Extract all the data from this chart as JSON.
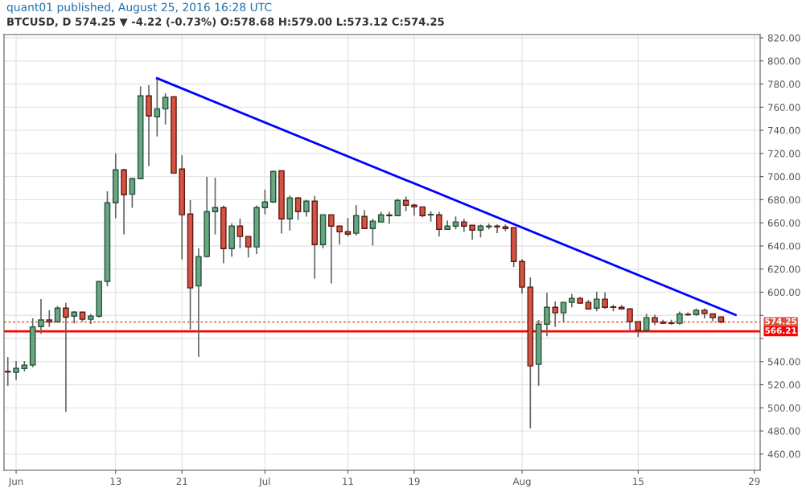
{
  "chart_data": {
    "type": "candlestick",
    "title": "quant01 published, August 25, 2016 16:28 UTC",
    "subtitle": "BTCUSD, D 574.25 ▼ -4.22 (-0.73%) O:578.68 H:579.00 L:573.12 C:574.25",
    "x": [
      "2016-05-31",
      "2016-06-01",
      "2016-06-02",
      "2016-06-03",
      "2016-06-04",
      "2016-06-05",
      "2016-06-06",
      "2016-06-07",
      "2016-06-08",
      "2016-06-09",
      "2016-06-10",
      "2016-06-11",
      "2016-06-12",
      "2016-06-13",
      "2016-06-14",
      "2016-06-15",
      "2016-06-16",
      "2016-06-17",
      "2016-06-18",
      "2016-06-19",
      "2016-06-20",
      "2016-06-21",
      "2016-06-22",
      "2016-06-23",
      "2016-06-24",
      "2016-06-25",
      "2016-06-26",
      "2016-06-27",
      "2016-06-28",
      "2016-06-29",
      "2016-06-30",
      "2016-07-01",
      "2016-07-02",
      "2016-07-03",
      "2016-07-04",
      "2016-07-05",
      "2016-07-06",
      "2016-07-07",
      "2016-07-08",
      "2016-07-09",
      "2016-07-10",
      "2016-07-11",
      "2016-07-12",
      "2016-07-13",
      "2016-07-14",
      "2016-07-15",
      "2016-07-16",
      "2016-07-17",
      "2016-07-18",
      "2016-07-19",
      "2016-07-20",
      "2016-07-21",
      "2016-07-22",
      "2016-07-23",
      "2016-07-24",
      "2016-07-25",
      "2016-07-26",
      "2016-07-27",
      "2016-07-28",
      "2016-07-29",
      "2016-07-30",
      "2016-07-31",
      "2016-08-01",
      "2016-08-02",
      "2016-08-03",
      "2016-08-04",
      "2016-08-05",
      "2016-08-06",
      "2016-08-07",
      "2016-08-08",
      "2016-08-09",
      "2016-08-10",
      "2016-08-11",
      "2016-08-12",
      "2016-08-13",
      "2016-08-14",
      "2016-08-15",
      "2016-08-16",
      "2016-08-17",
      "2016-08-18",
      "2016-08-19",
      "2016-08-20",
      "2016-08-21",
      "2016-08-22",
      "2016-08-23",
      "2016-08-24",
      "2016-08-25"
    ],
    "ohlc": [
      [
        531.5,
        544,
        519,
        531
      ],
      [
        530.7,
        540.6,
        524,
        534.2
      ],
      [
        534,
        540.5,
        531.5,
        537
      ],
      [
        537,
        577.5,
        535,
        570
      ],
      [
        570.3,
        594,
        564,
        576
      ],
      [
        576,
        584.5,
        570,
        574.3
      ],
      [
        574.3,
        588,
        574,
        586.3
      ],
      [
        586.3,
        590.7,
        496.5,
        578.4
      ],
      [
        579.3,
        583.7,
        573,
        582.8
      ],
      [
        582.8,
        583,
        574.7,
        576.6
      ],
      [
        576.6,
        581,
        572.5,
        579.3
      ],
      [
        579.3,
        609.5,
        578,
        609.2
      ],
      [
        609.4,
        687.3,
        605,
        677.3
      ],
      [
        677.3,
        720,
        664,
        705.8
      ],
      [
        705.8,
        706.7,
        650,
        684.3
      ],
      [
        684.7,
        699,
        673,
        698.2
      ],
      [
        698.2,
        778,
        698,
        769.8
      ],
      [
        769.8,
        779,
        709,
        752.4
      ],
      [
        751.7,
        785,
        734.7,
        758.6
      ],
      [
        758.6,
        772,
        745,
        768.4
      ],
      [
        769,
        769.5,
        703,
        703
      ],
      [
        706.5,
        718.5,
        628.4,
        667
      ],
      [
        667.6,
        679.6,
        567.7,
        603.7
      ],
      [
        605.5,
        638,
        544,
        630.8
      ],
      [
        630.8,
        699.8,
        630,
        669.7
      ],
      [
        669.7,
        699,
        650,
        673.2
      ],
      [
        673.2,
        675,
        625,
        637.7
      ],
      [
        637.7,
        659.4,
        630.8,
        657.2
      ],
      [
        657.2,
        663.6,
        638,
        648.2
      ],
      [
        648.2,
        648.5,
        630,
        639.2
      ],
      [
        639.2,
        675,
        633,
        673.2
      ],
      [
        673.2,
        688.7,
        667.3,
        678
      ],
      [
        678,
        705,
        677,
        704.4
      ],
      [
        705,
        705.2,
        650.7,
        663.4
      ],
      [
        663.4,
        683.6,
        653.4,
        681.5
      ],
      [
        681.5,
        682.2,
        662.5,
        669.7
      ],
      [
        669.7,
        680,
        665.3,
        678.7
      ],
      [
        678.7,
        683.3,
        611.7,
        641.2
      ],
      [
        641.2,
        667,
        638,
        667
      ],
      [
        667,
        667,
        607.6,
        657.2
      ],
      [
        657.2,
        657.5,
        641.2,
        652.3
      ],
      [
        652.3,
        664.3,
        648.2,
        650.2
      ],
      [
        651,
        675.3,
        649,
        666.2
      ],
      [
        665.5,
        671,
        655,
        655.1
      ],
      [
        655.1,
        663.5,
        640.5,
        661.4
      ],
      [
        660.7,
        669.7,
        660.5,
        666.9
      ],
      [
        666.8,
        669.7,
        659,
        666.2
      ],
      [
        666.2,
        680.8,
        666,
        679.4
      ],
      [
        679.4,
        682.7,
        670,
        675.2
      ],
      [
        675.2,
        676.6,
        666.2,
        673.8
      ],
      [
        673.8,
        674,
        664.8,
        666.2
      ],
      [
        666.8,
        670,
        661,
        667.3
      ],
      [
        666.9,
        669.5,
        648.2,
        654.4
      ],
      [
        654.4,
        662,
        654,
        657.2
      ],
      [
        657.2,
        665.5,
        654.4,
        660.7
      ],
      [
        660.7,
        663.4,
        652.3,
        657.2
      ],
      [
        657.9,
        658,
        645.4,
        653.7
      ],
      [
        653.7,
        658.6,
        647.4,
        657.2
      ],
      [
        656.5,
        659.3,
        654.4,
        657.2
      ],
      [
        657.2,
        658.6,
        651,
        656.5
      ],
      [
        656.5,
        658.6,
        652.8,
        655.1
      ],
      [
        655.8,
        656,
        621.8,
        626.6
      ],
      [
        626.6,
        628.7,
        598.8,
        604.4
      ],
      [
        604.4,
        612.7,
        482.3,
        536.3
      ],
      [
        537.7,
        576,
        519,
        572.4
      ],
      [
        572.4,
        599.5,
        562,
        587
      ],
      [
        587,
        592,
        570,
        582.2
      ],
      [
        582.2,
        591.5,
        574.5,
        591.2
      ],
      [
        591.2,
        598.4,
        587,
        594.7
      ],
      [
        594.7,
        596,
        589.8,
        590.5
      ],
      [
        591.2,
        593.4,
        585,
        585.6
      ],
      [
        586.3,
        600.4,
        583.5,
        594
      ],
      [
        594,
        599.8,
        585.6,
        587
      ],
      [
        587.3,
        589.3,
        583.5,
        586.9
      ],
      [
        587,
        589,
        585,
        585.6
      ],
      [
        585.6,
        586,
        565.5,
        574.5
      ],
      [
        574.5,
        574.5,
        561.3,
        567
      ],
      [
        567,
        581.4,
        566.5,
        578
      ],
      [
        578,
        580.6,
        571.4,
        574.2
      ],
      [
        574.2,
        576.2,
        572.7,
        573.1
      ],
      [
        573.5,
        576.2,
        571.9,
        573
      ],
      [
        573.1,
        583.3,
        572,
        581.2
      ],
      [
        580.9,
        582.7,
        579.5,
        580.5
      ],
      [
        580.7,
        586,
        579.5,
        584.4
      ],
      [
        584.4,
        586,
        577.3,
        581.5
      ],
      [
        581.2,
        581.5,
        574.7,
        578
      ],
      [
        578.68,
        579.0,
        573.12,
        574.25
      ]
    ],
    "series": [
      {
        "type": "line",
        "color": "#0000ff",
        "x": [
          "2016-06-18",
          "2016-08-26T18:00"
        ],
        "values": [
          785,
          580.4
        ]
      }
    ],
    "ref_lines": [
      {
        "axis": "y",
        "value": 574.25,
        "label": "574.25",
        "color": "#d75442",
        "line_style": "dotted"
      },
      {
        "axis": "y",
        "value": 566.21,
        "label": "566.21",
        "color": "#ff0000",
        "line_style": "solid"
      }
    ],
    "xlim": [
      "2016-05-30T13:00",
      "2016-08-29T17:00"
    ],
    "xticks": [
      {
        "value": "2016-06-01",
        "label": "Jun"
      },
      {
        "value": "2016-06-13",
        "label": "13"
      },
      {
        "value": "2016-06-21",
        "label": "21"
      },
      {
        "value": "2016-07-01",
        "label": "Jul"
      },
      {
        "value": "2016-07-11",
        "label": "11"
      },
      {
        "value": "2016-07-19",
        "label": "19"
      },
      {
        "value": "2016-08-01",
        "label": "Aug"
      },
      {
        "value": "2016-08-15",
        "label": "15"
      },
      {
        "value": "2016-08-29",
        "label": "29"
      }
    ],
    "ylim": [
      446,
      822.8
    ],
    "yticks": [
      {
        "value": 460,
        "label": "460.00"
      },
      {
        "value": 480,
        "label": "480.00"
      },
      {
        "value": 500,
        "label": "500.00"
      },
      {
        "value": 520,
        "label": "520.00"
      },
      {
        "value": 540,
        "label": "540.00"
      },
      {
        "value": 560,
        "label": null
      },
      {
        "value": 580,
        "label": null
      },
      {
        "value": 600,
        "label": "600.00"
      },
      {
        "value": 620,
        "label": "620.00"
      },
      {
        "value": 640,
        "label": "640.00"
      },
      {
        "value": 660,
        "label": "660.00"
      },
      {
        "value": 680,
        "label": "680.00"
      },
      {
        "value": 700,
        "label": "700.00"
      },
      {
        "value": 720,
        "label": "720.00"
      },
      {
        "value": 740,
        "label": "740.00"
      },
      {
        "value": 760,
        "label": "760.00"
      },
      {
        "value": 780,
        "label": "780.00"
      },
      {
        "value": 800,
        "label": "800.00"
      },
      {
        "value": 820,
        "label": "820.00"
      }
    ],
    "grid": true
  }
}
